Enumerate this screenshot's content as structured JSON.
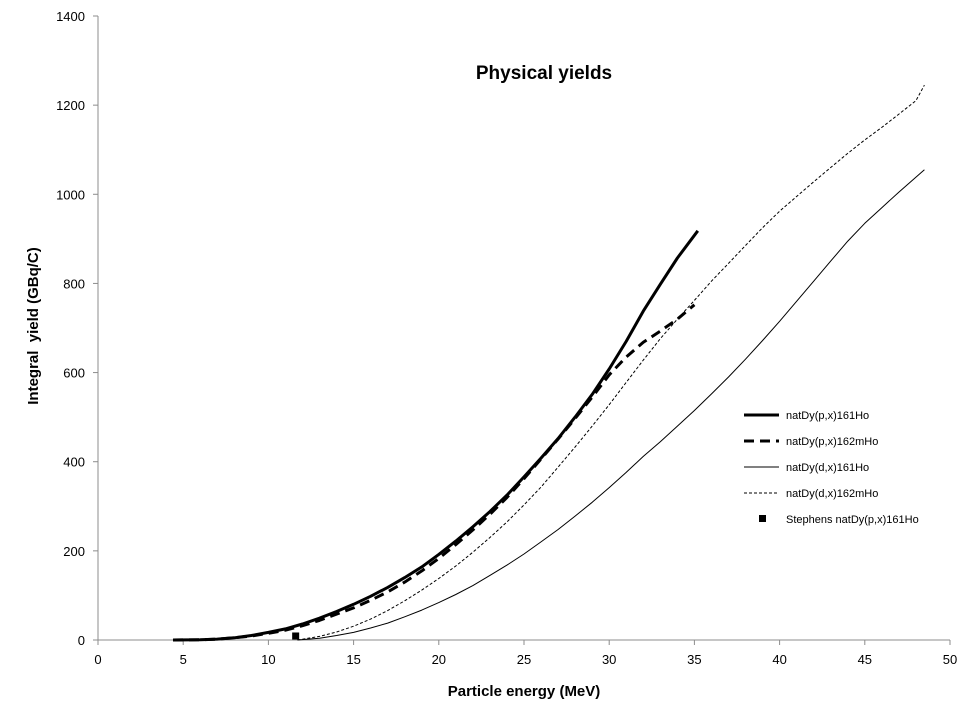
{
  "chart_data": {
    "type": "line",
    "title": "Physical yields",
    "xlabel": "Particle energy (MeV)",
    "ylabel": "Integral  yield (GBq/C)",
    "xlim": [
      0,
      50
    ],
    "ylim": [
      0,
      1400
    ],
    "x_ticks": [
      "0",
      "5",
      "10",
      "15",
      "20",
      "25",
      "30",
      "35",
      "40",
      "45",
      "50"
    ],
    "y_ticks": [
      "0",
      "200",
      "400",
      "600",
      "800",
      "1000",
      "1200",
      "1400"
    ],
    "grid": false,
    "legend_position": "right",
    "series": [
      {
        "name": "natDy(p,x)161Ho",
        "style": "solid-thick",
        "color": "#000000",
        "points": [
          [
            4.4,
            0
          ],
          [
            6,
            0.5
          ],
          [
            7,
            2
          ],
          [
            8,
            5
          ],
          [
            9,
            10
          ],
          [
            10,
            17
          ],
          [
            11,
            25
          ],
          [
            12,
            36
          ],
          [
            13,
            49
          ],
          [
            14,
            64
          ],
          [
            15,
            80
          ],
          [
            16,
            98
          ],
          [
            17,
            118
          ],
          [
            18,
            140
          ],
          [
            19,
            164
          ],
          [
            20,
            192
          ],
          [
            21,
            222
          ],
          [
            22,
            254
          ],
          [
            23,
            288
          ],
          [
            24,
            325
          ],
          [
            25,
            366
          ],
          [
            26,
            408
          ],
          [
            27,
            452
          ],
          [
            28,
            500
          ],
          [
            29,
            551
          ],
          [
            30,
            608
          ],
          [
            31,
            670
          ],
          [
            32,
            738
          ],
          [
            33,
            798
          ],
          [
            34,
            857
          ],
          [
            35.2,
            918
          ]
        ]
      },
      {
        "name": "natDy(p,x)162mHo",
        "style": "dashed-thick",
        "color": "#000000",
        "points": [
          [
            4.4,
            0
          ],
          [
            6,
            0.5
          ],
          [
            7,
            2
          ],
          [
            8,
            5
          ],
          [
            9,
            9
          ],
          [
            10,
            15
          ],
          [
            11,
            22
          ],
          [
            12,
            32
          ],
          [
            13,
            44
          ],
          [
            14,
            58
          ],
          [
            15,
            72
          ],
          [
            16,
            89
          ],
          [
            17,
            108
          ],
          [
            18,
            130
          ],
          [
            19,
            155
          ],
          [
            20,
            183
          ],
          [
            21,
            214
          ],
          [
            22,
            247
          ],
          [
            23,
            282
          ],
          [
            24,
            320
          ],
          [
            25,
            362
          ],
          [
            26,
            406
          ],
          [
            27,
            451
          ],
          [
            28,
            497
          ],
          [
            29,
            545
          ],
          [
            30,
            595
          ],
          [
            31,
            635
          ],
          [
            32,
            668
          ],
          [
            33,
            693
          ],
          [
            34,
            720
          ],
          [
            35,
            752
          ]
        ]
      },
      {
        "name": "natDy(d,x)161Ho",
        "style": "solid-thin",
        "color": "#000000",
        "points": [
          [
            11.7,
            0
          ],
          [
            13,
            4
          ],
          [
            14,
            10
          ],
          [
            15,
            17
          ],
          [
            16,
            27
          ],
          [
            17,
            38
          ],
          [
            18,
            52
          ],
          [
            19,
            67
          ],
          [
            20,
            84
          ],
          [
            21,
            102
          ],
          [
            22,
            122
          ],
          [
            23,
            145
          ],
          [
            24,
            168
          ],
          [
            25,
            193
          ],
          [
            26,
            220
          ],
          [
            27,
            248
          ],
          [
            28,
            278
          ],
          [
            29,
            309
          ],
          [
            30,
            342
          ],
          [
            31,
            376
          ],
          [
            32,
            412
          ],
          [
            33,
            445
          ],
          [
            34,
            480
          ],
          [
            35,
            515
          ],
          [
            36,
            552
          ],
          [
            37,
            590
          ],
          [
            38,
            630
          ],
          [
            39,
            672
          ],
          [
            40,
            715
          ],
          [
            41,
            760
          ],
          [
            42,
            805
          ],
          [
            43,
            850
          ],
          [
            44,
            895
          ],
          [
            45,
            935
          ],
          [
            46,
            970
          ],
          [
            47,
            1005
          ],
          [
            48.5,
            1055
          ]
        ]
      },
      {
        "name": "natDy(d,x)162mHo",
        "style": "dashed-thin",
        "color": "#000000",
        "points": [
          [
            11.7,
            0
          ],
          [
            13,
            8
          ],
          [
            14,
            18
          ],
          [
            15,
            31
          ],
          [
            16,
            47
          ],
          [
            17,
            66
          ],
          [
            18,
            88
          ],
          [
            19,
            112
          ],
          [
            20,
            138
          ],
          [
            21,
            166
          ],
          [
            22,
            197
          ],
          [
            23,
            230
          ],
          [
            24,
            265
          ],
          [
            25,
            303
          ],
          [
            26,
            343
          ],
          [
            27,
            388
          ],
          [
            28,
            433
          ],
          [
            29,
            480
          ],
          [
            30,
            528
          ],
          [
            31,
            578
          ],
          [
            32,
            628
          ],
          [
            33,
            676
          ],
          [
            34,
            720
          ],
          [
            35,
            762
          ],
          [
            36,
            805
          ],
          [
            37,
            845
          ],
          [
            38,
            885
          ],
          [
            39,
            925
          ],
          [
            40,
            962
          ],
          [
            41,
            995
          ],
          [
            42,
            1028
          ],
          [
            43,
            1060
          ],
          [
            44,
            1092
          ],
          [
            45,
            1122
          ],
          [
            46,
            1150
          ],
          [
            47,
            1180
          ],
          [
            48,
            1210
          ],
          [
            48.5,
            1245
          ]
        ]
      },
      {
        "name": "Stephens natDy(p,x)161Ho",
        "style": "square-marker",
        "color": "#000000",
        "points": [
          [
            11.6,
            9
          ]
        ]
      }
    ]
  }
}
